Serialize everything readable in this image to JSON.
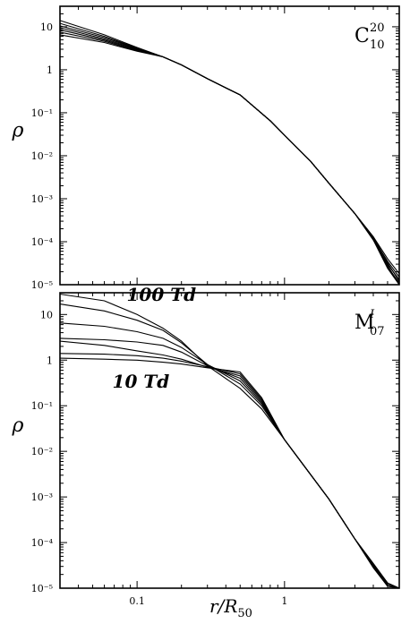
{
  "chart_data": [
    {
      "type": "line",
      "scale": "log-log",
      "panel": "top",
      "tag": {
        "main": "C",
        "sup": "20",
        "sub": "10"
      },
      "xlim": [
        0.03,
        6
      ],
      "ylim": [
        1e-05,
        30
      ],
      "ylabel": "ρ",
      "y_tick_labels": [
        "10",
        "1",
        "10⁻¹",
        "10⁻²",
        "10⁻³",
        "10⁻⁴",
        "10⁻⁵"
      ],
      "y_tick_values": [
        10,
        1,
        0.1,
        0.01,
        0.001,
        0.0001,
        1e-05
      ],
      "series": [
        {
          "points": [
            [
              0.03,
              14
            ],
            [
              0.06,
              6.5
            ],
            [
              0.1,
              3.3
            ],
            [
              0.15,
              2.0
            ],
            [
              0.2,
              1.3
            ],
            [
              0.3,
              0.62
            ],
            [
              0.5,
              0.26
            ],
            [
              0.8,
              0.065
            ],
            [
              1.0,
              0.03
            ],
            [
              1.5,
              0.0075
            ],
            [
              2.0,
              0.0023
            ],
            [
              3.0,
              0.00045
            ],
            [
              4.0,
              0.00013
            ],
            [
              5.0,
              4e-05
            ],
            [
              6.0,
              1.8e-05
            ]
          ]
        },
        {
          "points": [
            [
              0.03,
              12
            ],
            [
              0.06,
              6.0
            ],
            [
              0.1,
              3.2
            ],
            [
              0.15,
              2.0
            ],
            [
              0.2,
              1.3
            ],
            [
              0.3,
              0.62
            ],
            [
              0.5,
              0.26
            ],
            [
              0.8,
              0.065
            ],
            [
              1.0,
              0.03
            ],
            [
              1.5,
              0.0075
            ],
            [
              2.0,
              0.0023
            ],
            [
              3.0,
              0.00045
            ],
            [
              4.0,
              0.00012
            ],
            [
              5.0,
              3.5e-05
            ],
            [
              6.0,
              1.5e-05
            ]
          ]
        },
        {
          "points": [
            [
              0.03,
              10.5
            ],
            [
              0.06,
              5.6
            ],
            [
              0.1,
              3.1
            ],
            [
              0.15,
              2.0
            ],
            [
              0.2,
              1.3
            ],
            [
              0.3,
              0.62
            ],
            [
              0.5,
              0.26
            ],
            [
              0.8,
              0.065
            ],
            [
              1.0,
              0.03
            ],
            [
              1.5,
              0.0075
            ],
            [
              2.0,
              0.0023
            ],
            [
              3.0,
              0.00045
            ],
            [
              4.0,
              0.00011
            ],
            [
              5.0,
              3e-05
            ],
            [
              6.0,
              1.3e-05
            ]
          ]
        },
        {
          "points": [
            [
              0.03,
              9.5
            ],
            [
              0.06,
              5.2
            ],
            [
              0.1,
              3.0
            ],
            [
              0.15,
              2.0
            ],
            [
              0.2,
              1.3
            ],
            [
              0.3,
              0.62
            ],
            [
              0.5,
              0.26
            ],
            [
              0.8,
              0.065
            ],
            [
              1.0,
              0.03
            ],
            [
              1.5,
              0.0075
            ],
            [
              2.0,
              0.0023
            ],
            [
              3.0,
              0.00045
            ],
            [
              4.0,
              0.00012
            ],
            [
              5.0,
              2.8e-05
            ],
            [
              6.0,
              1e-05
            ]
          ]
        },
        {
          "points": [
            [
              0.03,
              8.5
            ],
            [
              0.06,
              4.9
            ],
            [
              0.1,
              2.9
            ],
            [
              0.15,
              2.0
            ],
            [
              0.2,
              1.3
            ],
            [
              0.3,
              0.62
            ],
            [
              0.5,
              0.26
            ],
            [
              0.8,
              0.065
            ],
            [
              1.0,
              0.03
            ],
            [
              1.5,
              0.0075
            ],
            [
              2.0,
              0.0023
            ],
            [
              3.0,
              0.00045
            ],
            [
              4.0,
              0.00013
            ],
            [
              5.0,
              3.2e-05
            ],
            [
              6.0,
              1.2e-05
            ]
          ]
        },
        {
          "points": [
            [
              0.03,
              7.5
            ],
            [
              0.06,
              4.6
            ],
            [
              0.1,
              2.8
            ],
            [
              0.15,
              2.0
            ],
            [
              0.2,
              1.3
            ],
            [
              0.3,
              0.62
            ],
            [
              0.5,
              0.26
            ],
            [
              0.8,
              0.065
            ],
            [
              1.0,
              0.03
            ],
            [
              1.5,
              0.0075
            ],
            [
              2.0,
              0.0023
            ],
            [
              3.0,
              0.00045
            ],
            [
              4.0,
              0.00012
            ],
            [
              5.0,
              2.6e-05
            ],
            [
              6.0,
              1.1e-05
            ]
          ]
        },
        {
          "points": [
            [
              0.03,
              6.5
            ],
            [
              0.06,
              4.3
            ],
            [
              0.1,
              2.7
            ],
            [
              0.15,
              2.0
            ],
            [
              0.2,
              1.3
            ],
            [
              0.3,
              0.62
            ],
            [
              0.5,
              0.26
            ],
            [
              0.8,
              0.065
            ],
            [
              1.0,
              0.03
            ],
            [
              1.5,
              0.0075
            ],
            [
              2.0,
              0.0023
            ],
            [
              3.0,
              0.00045
            ],
            [
              4.0,
              0.00011
            ],
            [
              5.0,
              2.4e-05
            ],
            [
              6.0,
              1e-05
            ]
          ]
        }
      ]
    },
    {
      "type": "line",
      "scale": "log-log",
      "panel": "bottom",
      "tag": {
        "main": "M",
        "sup": "I",
        "sub": "07"
      },
      "xlim": [
        0.03,
        6
      ],
      "ylim": [
        1e-05,
        30
      ],
      "ylabel": "ρ",
      "xlabel": "r/R50",
      "x_tick_labels": [
        "0.1",
        "1"
      ],
      "x_tick_values": [
        0.1,
        1
      ],
      "y_tick_labels": [
        "10",
        "1",
        "10⁻¹",
        "10⁻²",
        "10⁻³",
        "10⁻⁴",
        "10⁻⁵"
      ],
      "y_tick_values": [
        10,
        1,
        0.1,
        0.01,
        0.001,
        0.0001,
        1e-05
      ],
      "annotations": [
        {
          "text": "100 Td",
          "x": 0.085,
          "y": 20
        },
        {
          "text": "10 Td",
          "x": 0.068,
          "y": 0.25
        }
      ],
      "series": [
        {
          "points": [
            [
              0.03,
              28
            ],
            [
              0.06,
              20
            ],
            [
              0.1,
              10
            ],
            [
              0.15,
              5
            ],
            [
              0.2,
              2.6
            ],
            [
              0.3,
              0.75
            ],
            [
              0.5,
              0.24
            ],
            [
              0.7,
              0.085
            ],
            [
              1.0,
              0.018
            ],
            [
              2.0,
              0.0009
            ],
            [
              3.0,
              0.00012
            ],
            [
              4.0,
              3e-05
            ],
            [
              5.0,
              1.2e-05
            ],
            [
              6.0,
              1e-05
            ]
          ]
        },
        {
          "points": [
            [
              0.03,
              17
            ],
            [
              0.06,
              12
            ],
            [
              0.1,
              7.5
            ],
            [
              0.15,
              4.5
            ],
            [
              0.2,
              2.4
            ],
            [
              0.3,
              0.8
            ],
            [
              0.5,
              0.3
            ],
            [
              0.7,
              0.1
            ],
            [
              1.0,
              0.018
            ],
            [
              2.0,
              0.0009
            ],
            [
              3.0,
              0.00012
            ],
            [
              4.0,
              3.5e-05
            ],
            [
              5.0,
              1.3e-05
            ],
            [
              6.0,
              1e-05
            ]
          ]
        },
        {
          "points": [
            [
              0.03,
              6.5
            ],
            [
              0.06,
              5.5
            ],
            [
              0.1,
              4.2
            ],
            [
              0.15,
              3.0
            ],
            [
              0.2,
              1.9
            ],
            [
              0.3,
              0.8
            ],
            [
              0.5,
              0.35
            ],
            [
              0.7,
              0.11
            ],
            [
              1.0,
              0.018
            ],
            [
              2.0,
              0.0009
            ],
            [
              3.0,
              0.00012
            ],
            [
              4.0,
              3e-05
            ],
            [
              5.0,
              1.1e-05
            ],
            [
              6.0,
              1e-05
            ]
          ]
        },
        {
          "points": [
            [
              0.03,
              3.0
            ],
            [
              0.06,
              2.8
            ],
            [
              0.1,
              2.5
            ],
            [
              0.15,
              2.1
            ],
            [
              0.2,
              1.5
            ],
            [
              0.3,
              0.75
            ],
            [
              0.5,
              0.4
            ],
            [
              0.7,
              0.12
            ],
            [
              1.0,
              0.018
            ],
            [
              2.0,
              0.0009
            ],
            [
              3.0,
              0.00012
            ],
            [
              4.0,
              3.2e-05
            ],
            [
              5.0,
              1.2e-05
            ],
            [
              6.0,
              1e-05
            ]
          ]
        },
        {
          "points": [
            [
              0.03,
              2.6
            ],
            [
              0.06,
              2.1
            ],
            [
              0.1,
              1.6
            ],
            [
              0.15,
              1.3
            ],
            [
              0.2,
              1.05
            ],
            [
              0.3,
              0.7
            ],
            [
              0.5,
              0.45
            ],
            [
              0.7,
              0.13
            ],
            [
              1.0,
              0.018
            ],
            [
              2.0,
              0.0009
            ],
            [
              3.0,
              0.00012
            ],
            [
              4.0,
              2.8e-05
            ],
            [
              5.0,
              1.1e-05
            ],
            [
              6.0,
              1e-05
            ]
          ]
        },
        {
          "points": [
            [
              0.03,
              1.4
            ],
            [
              0.06,
              1.35
            ],
            [
              0.1,
              1.25
            ],
            [
              0.15,
              1.1
            ],
            [
              0.2,
              0.95
            ],
            [
              0.3,
              0.72
            ],
            [
              0.5,
              0.5
            ],
            [
              0.7,
              0.14
            ],
            [
              1.0,
              0.018
            ],
            [
              2.0,
              0.0009
            ],
            [
              3.0,
              0.00012
            ],
            [
              4.0,
              3e-05
            ],
            [
              5.0,
              1.2e-05
            ],
            [
              6.0,
              1e-05
            ]
          ]
        },
        {
          "points": [
            [
              0.03,
              1.1
            ],
            [
              0.06,
              1.05
            ],
            [
              0.1,
              1.0
            ],
            [
              0.15,
              0.9
            ],
            [
              0.2,
              0.82
            ],
            [
              0.3,
              0.68
            ],
            [
              0.5,
              0.55
            ],
            [
              0.7,
              0.15
            ],
            [
              1.0,
              0.018
            ],
            [
              2.0,
              0.0009
            ],
            [
              3.0,
              0.00012
            ],
            [
              4.0,
              3.3e-05
            ],
            [
              5.0,
              1.3e-05
            ],
            [
              6.0,
              1e-05
            ]
          ]
        }
      ]
    }
  ]
}
